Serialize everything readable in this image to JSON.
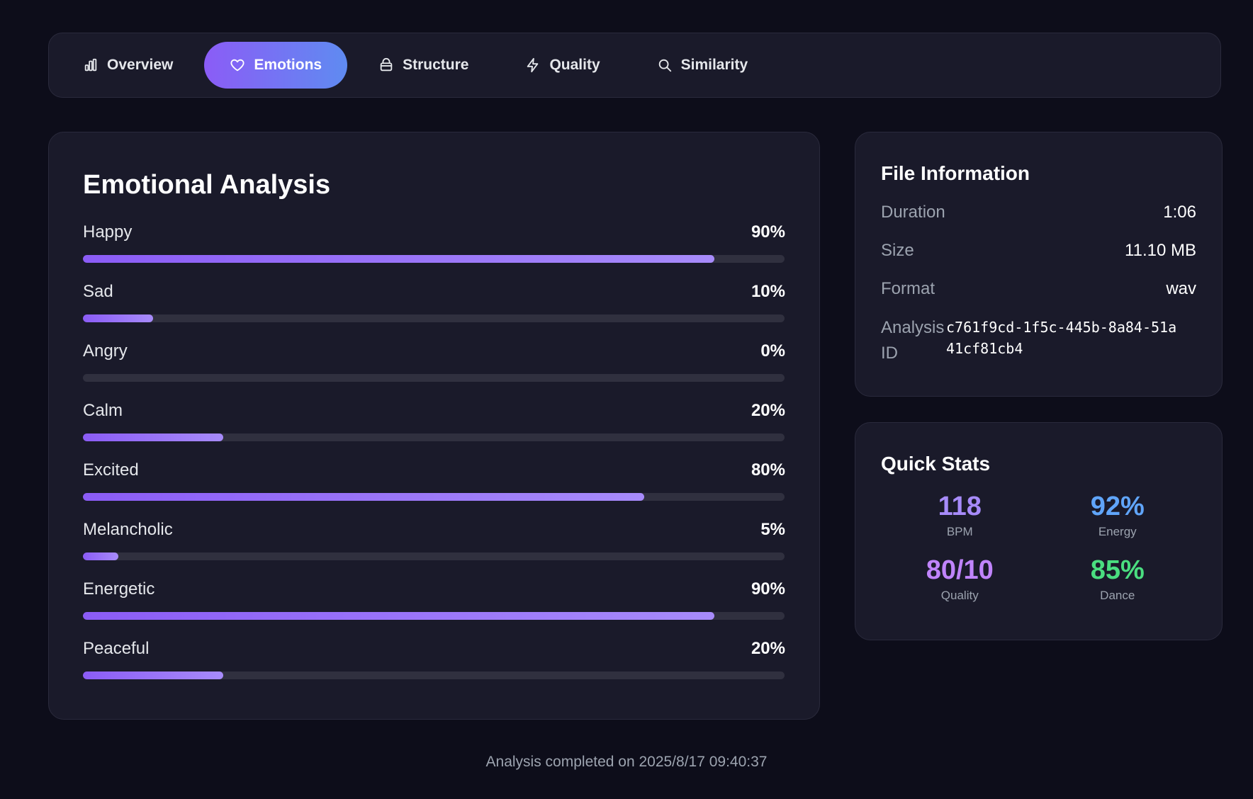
{
  "tabs": [
    {
      "label": "Overview",
      "icon": "bar-chart-icon",
      "active": false
    },
    {
      "label": "Emotions",
      "icon": "heart-icon",
      "active": true
    },
    {
      "label": "Structure",
      "icon": "layers-icon",
      "active": false
    },
    {
      "label": "Quality",
      "icon": "lightning-icon",
      "active": false
    },
    {
      "label": "Similarity",
      "icon": "search-icon",
      "active": false
    }
  ],
  "emotions": {
    "title": "Emotional Analysis",
    "items": [
      {
        "label": "Happy",
        "percent_text": "90%",
        "percent": 90
      },
      {
        "label": "Sad",
        "percent_text": "10%",
        "percent": 10
      },
      {
        "label": "Angry",
        "percent_text": "0%",
        "percent": 0
      },
      {
        "label": "Calm",
        "percent_text": "20%",
        "percent": 20
      },
      {
        "label": "Excited",
        "percent_text": "80%",
        "percent": 80
      },
      {
        "label": "Melancholic",
        "percent_text": "5%",
        "percent": 5
      },
      {
        "label": "Energetic",
        "percent_text": "90%",
        "percent": 90
      },
      {
        "label": "Peaceful",
        "percent_text": "20%",
        "percent": 20
      }
    ]
  },
  "file_info": {
    "title": "File Information",
    "duration_label": "Duration",
    "duration_value": "1:06",
    "size_label": "Size",
    "size_value": "11.10 MB",
    "format_label": "Format",
    "format_value": "wav",
    "analysis_id_label": "Analysis ID",
    "analysis_id_value": "c761f9cd-1f5c-445b-8a84-51a41cf81cb4"
  },
  "quick_stats": {
    "title": "Quick Stats",
    "items": [
      {
        "value": "118",
        "label": "BPM",
        "color": "#a78bfa"
      },
      {
        "value": "92%",
        "label": "Energy",
        "color": "#60a5fa"
      },
      {
        "value": "80/10",
        "label": "Quality",
        "color": "#c084fc"
      },
      {
        "value": "85%",
        "label": "Dance",
        "color": "#4ade80"
      }
    ]
  },
  "footer": {
    "text": "Analysis completed on 2025/8/17 09:40:37"
  },
  "colors": {
    "background": "#0d0d1a",
    "card": "#1a1a2a",
    "accent_start": "#8b5cf6",
    "accent_end": "#5f8bf1",
    "bar_track": "#30303f"
  }
}
